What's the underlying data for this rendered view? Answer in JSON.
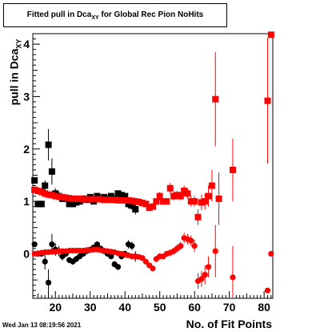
{
  "title_prefix": "Fitted pull in Dca",
  "title_sub": "XY",
  "title_suffix": " for Global Rec Pion NoHits",
  "ylabel_prefix": "pull in Dca",
  "ylabel_sub": "XY",
  "xlabel": "No. of Fit Points",
  "datestamp": "Wed Jan 13 08:19:56 2021",
  "colors": {
    "black_series": "#000000",
    "red_series": "#ff0000",
    "axis": "#000000"
  },
  "chart_data": {
    "type": "scatter",
    "title": "Fitted pull in Dca_XY for Global Rec Pion NoHits",
    "xlabel": "No. of Fit Points",
    "ylabel": "pull in Dca_XY",
    "xlim": [
      13.5,
      82.5
    ],
    "ylim": [
      -0.85,
      4.2
    ],
    "x_ticks": [
      20,
      30,
      40,
      50,
      60,
      70,
      80
    ],
    "y_ticks": [
      0,
      1,
      2,
      3,
      4
    ],
    "grid": false,
    "series": [
      {
        "role": "width-black",
        "color": "#000000",
        "points": [
          {
            "x": 14,
            "y": 1.4,
            "e": 0.05
          },
          {
            "x": 15,
            "y": 0.95,
            "e": 0.06
          },
          {
            "x": 16,
            "y": 0.95,
            "e": 0.06
          },
          {
            "x": 17,
            "y": 1.3,
            "e": 0.1
          },
          {
            "x": 18,
            "y": 2.08,
            "e": 0.3
          },
          {
            "x": 19,
            "y": 1.57,
            "e": 0.25
          },
          {
            "x": 20,
            "y": 1.15,
            "e": 0.1
          },
          {
            "x": 21,
            "y": 1.1,
            "e": 0.08
          },
          {
            "x": 22,
            "y": 1.05,
            "e": 0.06
          },
          {
            "x": 23,
            "y": 1.05,
            "e": 0.05
          },
          {
            "x": 24,
            "y": 0.95,
            "e": 0.05
          },
          {
            "x": 25,
            "y": 0.95,
            "e": 0.05
          },
          {
            "x": 26,
            "y": 0.98,
            "e": 0.05
          },
          {
            "x": 27,
            "y": 1.0,
            "e": 0.04
          },
          {
            "x": 28,
            "y": 1.05,
            "e": 0.04
          },
          {
            "x": 29,
            "y": 1.03,
            "e": 0.04
          },
          {
            "x": 30,
            "y": 1.08,
            "e": 0.04
          },
          {
            "x": 31,
            "y": 1.0,
            "e": 0.04
          },
          {
            "x": 32,
            "y": 1.1,
            "e": 0.05
          },
          {
            "x": 33,
            "y": 1.05,
            "e": 0.05
          },
          {
            "x": 34,
            "y": 1.08,
            "e": 0.05
          },
          {
            "x": 35,
            "y": 1.05,
            "e": 0.05
          },
          {
            "x": 36,
            "y": 1.1,
            "e": 0.05
          },
          {
            "x": 37,
            "y": 1.05,
            "e": 0.05
          },
          {
            "x": 38,
            "y": 1.15,
            "e": 0.05
          },
          {
            "x": 39,
            "y": 1.12,
            "e": 0.06
          },
          {
            "x": 40,
            "y": 1.1,
            "e": 0.06
          },
          {
            "x": 41,
            "y": 0.95,
            "e": 0.08
          },
          {
            "x": 42,
            "y": 0.92,
            "e": 0.08
          },
          {
            "x": 43,
            "y": 0.85,
            "e": 0.1
          }
        ]
      },
      {
        "role": "mean-black",
        "color": "#000000",
        "points": [
          {
            "x": 14,
            "y": 0.18,
            "e": 0.05
          },
          {
            "x": 15,
            "y": 0.0,
            "e": 0.05
          },
          {
            "x": 16,
            "y": 0.0,
            "e": 0.05
          },
          {
            "x": 17,
            "y": -0.15,
            "e": 0.15
          },
          {
            "x": 18,
            "y": -0.55,
            "e": 0.25
          },
          {
            "x": 19,
            "y": 0.18,
            "e": 0.2
          },
          {
            "x": 20,
            "y": 0.08,
            "e": 0.12
          },
          {
            "x": 21,
            "y": 0.05,
            "e": 0.1
          },
          {
            "x": 22,
            "y": -0.05,
            "e": 0.08
          },
          {
            "x": 23,
            "y": 0.0,
            "e": 0.06
          },
          {
            "x": 24,
            "y": -0.12,
            "e": 0.06
          },
          {
            "x": 25,
            "y": -0.15,
            "e": 0.06
          },
          {
            "x": 26,
            "y": -0.1,
            "e": 0.06
          },
          {
            "x": 27,
            "y": -0.05,
            "e": 0.05
          },
          {
            "x": 28,
            "y": 0.0,
            "e": 0.05
          },
          {
            "x": 29,
            "y": 0.05,
            "e": 0.05
          },
          {
            "x": 30,
            "y": 0.08,
            "e": 0.05
          },
          {
            "x": 31,
            "y": 0.12,
            "e": 0.05
          },
          {
            "x": 32,
            "y": 0.18,
            "e": 0.05
          },
          {
            "x": 33,
            "y": 0.1,
            "e": 0.05
          },
          {
            "x": 34,
            "y": 0.05,
            "e": 0.05
          },
          {
            "x": 35,
            "y": 0.0,
            "e": 0.05
          },
          {
            "x": 36,
            "y": -0.05,
            "e": 0.05
          },
          {
            "x": 37,
            "y": -0.2,
            "e": 0.06
          },
          {
            "x": 38,
            "y": -0.25,
            "e": 0.06
          },
          {
            "x": 39,
            "y": -0.05,
            "e": 0.06
          },
          {
            "x": 40,
            "y": 0.0,
            "e": 0.06
          },
          {
            "x": 41,
            "y": 0.18,
            "e": 0.08
          },
          {
            "x": 42,
            "y": 0.15,
            "e": 0.08
          },
          {
            "x": 43,
            "y": -0.05,
            "e": 0.1
          }
        ]
      },
      {
        "role": "width-red",
        "color": "#ff0000",
        "points": [
          {
            "x": 14,
            "y": 1.22,
            "e": 0.02
          },
          {
            "x": 15,
            "y": 1.2,
            "e": 0.02
          },
          {
            "x": 16,
            "y": 1.18,
            "e": 0.02
          },
          {
            "x": 17,
            "y": 1.15,
            "e": 0.02
          },
          {
            "x": 18,
            "y": 1.13,
            "e": 0.02
          },
          {
            "x": 19,
            "y": 1.12,
            "e": 0.02
          },
          {
            "x": 20,
            "y": 1.1,
            "e": 0.02
          },
          {
            "x": 21,
            "y": 1.09,
            "e": 0.02
          },
          {
            "x": 22,
            "y": 1.08,
            "e": 0.02
          },
          {
            "x": 23,
            "y": 1.07,
            "e": 0.02
          },
          {
            "x": 24,
            "y": 1.06,
            "e": 0.02
          },
          {
            "x": 25,
            "y": 1.05,
            "e": 0.02
          },
          {
            "x": 26,
            "y": 1.05,
            "e": 0.02
          },
          {
            "x": 27,
            "y": 1.05,
            "e": 0.02
          },
          {
            "x": 28,
            "y": 1.04,
            "e": 0.02
          },
          {
            "x": 29,
            "y": 1.04,
            "e": 0.02
          },
          {
            "x": 30,
            "y": 1.04,
            "e": 0.02
          },
          {
            "x": 31,
            "y": 1.04,
            "e": 0.02
          },
          {
            "x": 32,
            "y": 1.04,
            "e": 0.02
          },
          {
            "x": 33,
            "y": 1.04,
            "e": 0.02
          },
          {
            "x": 34,
            "y": 1.03,
            "e": 0.02
          },
          {
            "x": 35,
            "y": 1.03,
            "e": 0.02
          },
          {
            "x": 36,
            "y": 1.03,
            "e": 0.02
          },
          {
            "x": 37,
            "y": 1.03,
            "e": 0.02
          },
          {
            "x": 38,
            "y": 1.02,
            "e": 0.02
          },
          {
            "x": 39,
            "y": 1.02,
            "e": 0.02
          },
          {
            "x": 40,
            "y": 1.02,
            "e": 0.02
          },
          {
            "x": 41,
            "y": 1.02,
            "e": 0.02
          },
          {
            "x": 42,
            "y": 1.01,
            "e": 0.02
          },
          {
            "x": 43,
            "y": 1.0,
            "e": 0.02
          },
          {
            "x": 44,
            "y": 0.99,
            "e": 0.03
          },
          {
            "x": 45,
            "y": 0.97,
            "e": 0.03
          },
          {
            "x": 46,
            "y": 0.95,
            "e": 0.03
          },
          {
            "x": 47,
            "y": 0.88,
            "e": 0.05
          },
          {
            "x": 48,
            "y": 0.9,
            "e": 0.05
          },
          {
            "x": 49,
            "y": 1.0,
            "e": 0.05
          },
          {
            "x": 50,
            "y": 1.1,
            "e": 0.08
          },
          {
            "x": 51,
            "y": 1.0,
            "e": 0.06
          },
          {
            "x": 52,
            "y": 1.0,
            "e": 0.06
          },
          {
            "x": 53,
            "y": 1.25,
            "e": 0.1
          },
          {
            "x": 54,
            "y": 1.1,
            "e": 0.08
          },
          {
            "x": 55,
            "y": 1.12,
            "e": 0.08
          },
          {
            "x": 56,
            "y": 1.1,
            "e": 0.08
          },
          {
            "x": 57,
            "y": 1.2,
            "e": 0.1
          },
          {
            "x": 58,
            "y": 1.15,
            "e": 0.1
          },
          {
            "x": 59,
            "y": 1.0,
            "e": 0.1
          },
          {
            "x": 60,
            "y": 1.0,
            "e": 0.1
          },
          {
            "x": 61,
            "y": 0.7,
            "e": 0.15
          },
          {
            "x": 62,
            "y": 0.98,
            "e": 0.15
          },
          {
            "x": 63,
            "y": 1.0,
            "e": 0.15
          },
          {
            "x": 64,
            "y": 1.1,
            "e": 0.2
          },
          {
            "x": 65,
            "y": 1.3,
            "e": 0.3
          },
          {
            "x": 66,
            "y": 2.95,
            "e": 0.9
          },
          {
            "x": 67,
            "y": 1.05,
            "e": 0.5
          },
          {
            "x": 71,
            "y": 1.6,
            "e": 0.6
          },
          {
            "x": 81,
            "y": 2.92,
            "e": 1.2
          },
          {
            "x": 82,
            "y": 4.18,
            "e": 0.0
          }
        ]
      },
      {
        "role": "mean-red",
        "color": "#ff0000",
        "points": [
          {
            "x": 14,
            "y": 0.0,
            "e": 0.02
          },
          {
            "x": 15,
            "y": 0.01,
            "e": 0.02
          },
          {
            "x": 16,
            "y": 0.02,
            "e": 0.02
          },
          {
            "x": 17,
            "y": 0.03,
            "e": 0.02
          },
          {
            "x": 18,
            "y": 0.03,
            "e": 0.02
          },
          {
            "x": 19,
            "y": 0.04,
            "e": 0.02
          },
          {
            "x": 20,
            "y": 0.04,
            "e": 0.02
          },
          {
            "x": 21,
            "y": 0.05,
            "e": 0.02
          },
          {
            "x": 22,
            "y": 0.05,
            "e": 0.02
          },
          {
            "x": 23,
            "y": 0.05,
            "e": 0.02
          },
          {
            "x": 24,
            "y": 0.06,
            "e": 0.02
          },
          {
            "x": 25,
            "y": 0.06,
            "e": 0.02
          },
          {
            "x": 26,
            "y": 0.06,
            "e": 0.02
          },
          {
            "x": 27,
            "y": 0.06,
            "e": 0.02
          },
          {
            "x": 28,
            "y": 0.06,
            "e": 0.02
          },
          {
            "x": 29,
            "y": 0.07,
            "e": 0.02
          },
          {
            "x": 30,
            "y": 0.07,
            "e": 0.02
          },
          {
            "x": 31,
            "y": 0.08,
            "e": 0.02
          },
          {
            "x": 32,
            "y": 0.08,
            "e": 0.02
          },
          {
            "x": 33,
            "y": 0.07,
            "e": 0.02
          },
          {
            "x": 34,
            "y": 0.06,
            "e": 0.02
          },
          {
            "x": 35,
            "y": 0.05,
            "e": 0.02
          },
          {
            "x": 36,
            "y": 0.04,
            "e": 0.02
          },
          {
            "x": 37,
            "y": 0.03,
            "e": 0.02
          },
          {
            "x": 38,
            "y": 0.01,
            "e": 0.02
          },
          {
            "x": 39,
            "y": 0.0,
            "e": 0.02
          },
          {
            "x": 40,
            "y": -0.02,
            "e": 0.02
          },
          {
            "x": 41,
            "y": -0.03,
            "e": 0.02
          },
          {
            "x": 42,
            "y": -0.05,
            "e": 0.02
          },
          {
            "x": 43,
            "y": -0.05,
            "e": 0.03
          },
          {
            "x": 44,
            "y": -0.06,
            "e": 0.03
          },
          {
            "x": 45,
            "y": -0.08,
            "e": 0.03
          },
          {
            "x": 46,
            "y": -0.15,
            "e": 0.04
          },
          {
            "x": 47,
            "y": -0.22,
            "e": 0.05
          },
          {
            "x": 48,
            "y": -0.28,
            "e": 0.06
          },
          {
            "x": 49,
            "y": -0.1,
            "e": 0.06
          },
          {
            "x": 50,
            "y": -0.05,
            "e": 0.06
          },
          {
            "x": 51,
            "y": -0.05,
            "e": 0.06
          },
          {
            "x": 52,
            "y": 0.0,
            "e": 0.06
          },
          {
            "x": 53,
            "y": 0.02,
            "e": 0.06
          },
          {
            "x": 54,
            "y": 0.05,
            "e": 0.07
          },
          {
            "x": 55,
            "y": 0.1,
            "e": 0.08
          },
          {
            "x": 56,
            "y": 0.15,
            "e": 0.08
          },
          {
            "x": 57,
            "y": 0.3,
            "e": 0.1
          },
          {
            "x": 58,
            "y": 0.28,
            "e": 0.1
          },
          {
            "x": 59,
            "y": 0.25,
            "e": 0.1
          },
          {
            "x": 60,
            "y": 0.15,
            "e": 0.12
          },
          {
            "x": 61,
            "y": -0.52,
            "e": 0.15
          },
          {
            "x": 62,
            "y": -0.48,
            "e": 0.15
          },
          {
            "x": 63,
            "y": -0.4,
            "e": 0.18
          },
          {
            "x": 64,
            "y": -0.25,
            "e": 0.2
          },
          {
            "x": 66,
            "y": 0.05,
            "e": 0.5
          },
          {
            "x": 71,
            "y": -0.45,
            "e": 0.6
          },
          {
            "x": 81,
            "y": -0.7,
            "e": 0.0
          },
          {
            "x": 82,
            "y": 0.0,
            "e": 0.0
          }
        ]
      }
    ]
  }
}
